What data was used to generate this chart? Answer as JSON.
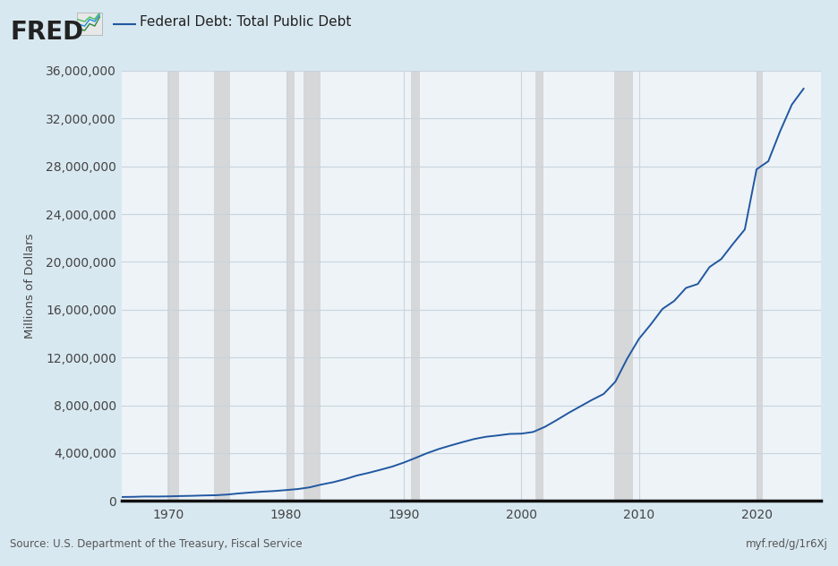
{
  "title": "Federal Debt: Total Public Debt",
  "ylabel": "Millions of Dollars",
  "source_text": "Source: U.S. Department of the Treasury, Fiscal Service",
  "url_text": "myf.red/g/1r6Xj",
  "line_color": "#2158a0",
  "background_color": "#d8e8f0",
  "plot_background": "#eef3f8",
  "grid_color": "#c8d4dc",
  "ylim": [
    0,
    36000000
  ],
  "yticks": [
    0,
    4000000,
    8000000,
    12000000,
    16000000,
    20000000,
    24000000,
    28000000,
    32000000,
    36000000
  ],
  "xlim_start": 1966.0,
  "xlim_end": 2025.5,
  "xticks": [
    1970,
    1980,
    1990,
    2000,
    2010,
    2020
  ],
  "recession_bands": [
    [
      1969.9,
      1970.9
    ],
    [
      1973.9,
      1975.2
    ],
    [
      1980.0,
      1980.7
    ],
    [
      1981.5,
      1982.9
    ],
    [
      1990.6,
      1991.4
    ],
    [
      2001.2,
      2001.9
    ],
    [
      2007.9,
      2009.5
    ],
    [
      2020.0,
      2020.5
    ]
  ],
  "data_years": [
    1966,
    1967,
    1968,
    1969,
    1970,
    1971,
    1972,
    1973,
    1974,
    1975,
    1976,
    1977,
    1978,
    1979,
    1980,
    1981,
    1982,
    1983,
    1984,
    1985,
    1986,
    1987,
    1988,
    1989,
    1990,
    1991,
    1992,
    1993,
    1994,
    1995,
    1996,
    1997,
    1998,
    1999,
    2000,
    2001,
    2002,
    2003,
    2004,
    2005,
    2006,
    2007,
    2008,
    2009,
    2010,
    2011,
    2012,
    2013,
    2014,
    2015,
    2016,
    2017,
    2018,
    2019,
    2020,
    2021,
    2022,
    2023,
    2024
  ],
  "data_values": [
    328500,
    341300,
    369800,
    365800,
    380900,
    408200,
    427300,
    457300,
    475100,
    533200,
    629000,
    706400,
    776600,
    828900,
    908500,
    994300,
    1137300,
    1371700,
    1564600,
    1817500,
    2120600,
    2345600,
    2601300,
    2867800,
    3206300,
    3598200,
    4001800,
    4351200,
    4643300,
    4920600,
    5181900,
    5369700,
    5478200,
    5606100,
    5628700,
    5769900,
    6198400,
    6760000,
    7354700,
    7905300,
    8451000,
    8950700,
    9986100,
    11909800,
    13561600,
    14764200,
    16066200,
    16738200,
    17824100,
    18150600,
    19573400,
    20244900,
    21516100,
    22719400,
    27748100,
    28428900,
    30928700,
    33167000,
    34500000
  ],
  "fred_text_color": "#222222",
  "axis_text_color": "#444444",
  "bottom_text_color": "#555555"
}
